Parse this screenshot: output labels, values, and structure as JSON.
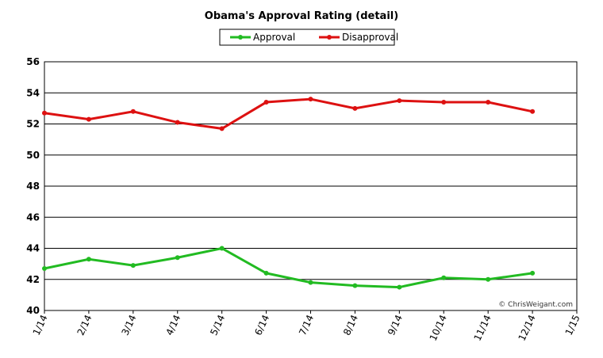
{
  "chart_data": {
    "type": "line",
    "title": "Obama's Approval Rating (detail)",
    "categories": [
      "1/14",
      "2/14",
      "3/14",
      "4/14",
      "5/14",
      "6/14",
      "7/14",
      "8/14",
      "9/14",
      "10/14",
      "11/14",
      "12/14",
      "1/15"
    ],
    "series": [
      {
        "name": "Approval",
        "color": "#22bb22",
        "values": [
          42.7,
          43.3,
          42.9,
          43.4,
          44.0,
          42.4,
          41.8,
          41.6,
          41.5,
          42.1,
          42.0,
          42.4,
          null
        ]
      },
      {
        "name": "Disapproval",
        "color": "#dd1111",
        "values": [
          52.7,
          52.3,
          52.8,
          52.1,
          51.7,
          53.4,
          53.6,
          53.0,
          53.5,
          53.4,
          53.4,
          52.8,
          null
        ]
      }
    ],
    "ylim": [
      40,
      56
    ],
    "yticks": [
      40,
      42,
      44,
      46,
      48,
      50,
      52,
      54,
      56
    ],
    "grid": true,
    "annotation": "© ChrisWeigant.com"
  }
}
